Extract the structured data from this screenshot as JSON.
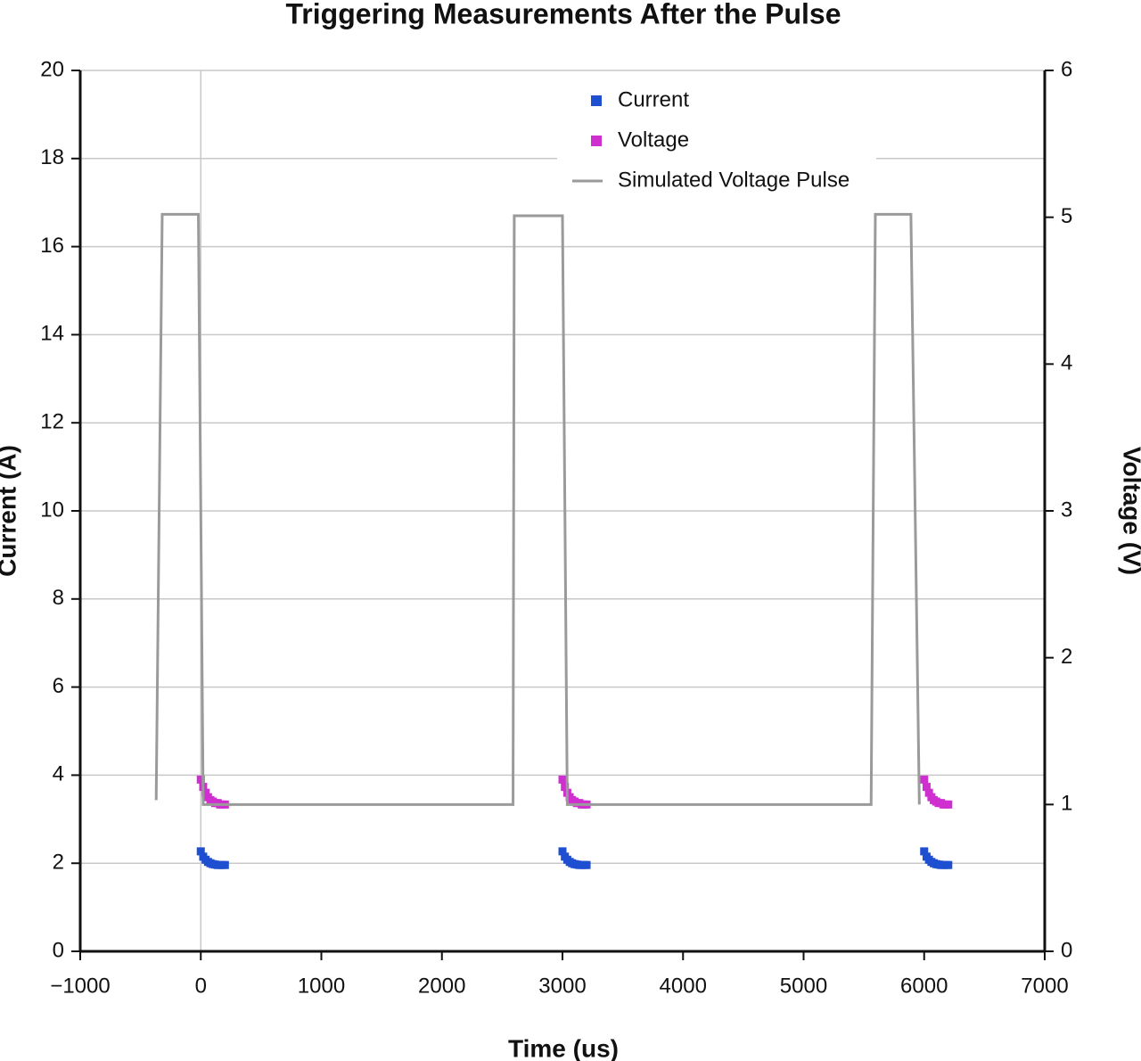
{
  "chart_data": {
    "type": "scatter",
    "title": "Triggering Measurements After the Pulse",
    "x_label": "Time (us)",
    "y_label": "Current (A)",
    "y2_label": "Voltage (V)",
    "xlim": [
      -1000,
      7000
    ],
    "xticks": [
      {
        "value": -1000,
        "label": "−1000"
      },
      0,
      1000,
      2000,
      3000,
      4000,
      5000,
      6000,
      7000
    ],
    "ylim": [
      0,
      20
    ],
    "yticks": [
      0,
      2,
      4,
      6,
      8,
      10,
      12,
      14,
      16,
      18,
      20
    ],
    "y2lim": [
      0,
      6
    ],
    "y2ticks": [
      0,
      1,
      2,
      3,
      4,
      5,
      6
    ],
    "grid": true,
    "legend": "top",
    "x": [
      0,
      20,
      40,
      60,
      80,
      100,
      120,
      140,
      160,
      180,
      200,
      3000,
      3020,
      3040,
      3060,
      3080,
      3100,
      3120,
      3140,
      3160,
      3180,
      3200,
      6000,
      6020,
      6040,
      6060,
      6080,
      6100,
      6120,
      6140,
      6160,
      6180,
      6200
    ],
    "series": [
      {
        "name": "Current",
        "color": "#1f4fd1",
        "values": [
          2.27,
          2.15,
          2.08,
          2.03,
          2.0,
          1.98,
          1.97,
          1.96,
          1.96,
          1.96,
          1.96,
          2.27,
          2.15,
          2.08,
          2.03,
          2.0,
          1.98,
          1.97,
          1.96,
          1.96,
          1.96,
          1.96,
          2.27,
          2.15,
          2.08,
          2.03,
          2.0,
          1.98,
          1.97,
          1.96,
          1.96,
          1.96,
          1.96
        ]
      },
      {
        "name": "Voltage",
        "color": "#d02fd0",
        "axis": "y2",
        "values": [
          1.17,
          1.12,
          1.08,
          1.05,
          1.03,
          1.02,
          1.01,
          1.01,
          1.0,
          1.0,
          1.0,
          1.17,
          1.12,
          1.08,
          1.05,
          1.03,
          1.02,
          1.01,
          1.01,
          1.0,
          1.0,
          1.0,
          1.17,
          1.12,
          1.08,
          1.05,
          1.03,
          1.02,
          1.01,
          1.01,
          1.0,
          1.0,
          1.0
        ]
      },
      {
        "name": "Simulated Voltage Pulse",
        "color": "#9a9a9a",
        "axis": "y2",
        "line": true,
        "x": [
          -370,
          -320,
          -20,
          20,
          2590,
          2600,
          3000,
          3040,
          5560,
          5595,
          5890,
          5960
        ],
        "values": [
          1.03,
          5.02,
          5.02,
          1.0,
          1.0,
          5.01,
          5.01,
          1.0,
          1.0,
          5.02,
          5.02,
          1.0
        ]
      }
    ]
  }
}
